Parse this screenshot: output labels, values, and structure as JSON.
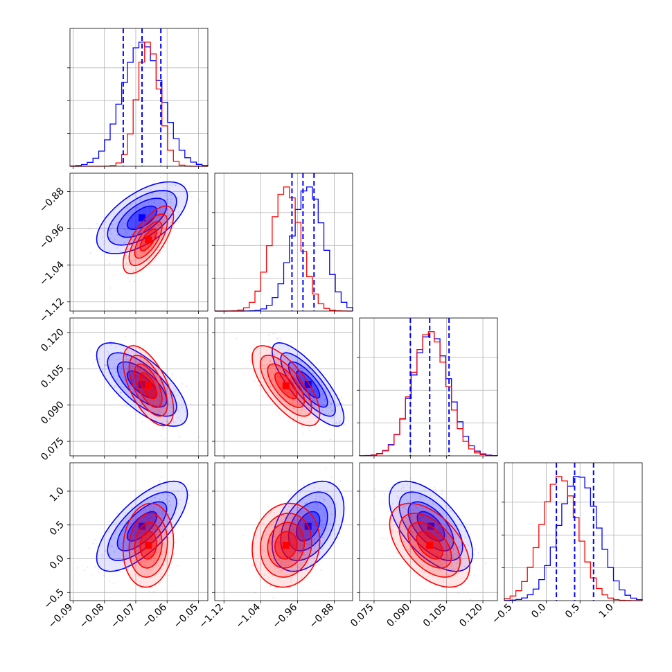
{
  "chart_data": {
    "type": "corner",
    "title": "",
    "grid": true,
    "parameters": [
      {
        "ticks": [
          -0.09,
          -0.08,
          -0.07,
          -0.06,
          -0.05
        ],
        "tick_labels": [
          "−0.09",
          "−0.08",
          "−0.07",
          "−0.06",
          "−0.05"
        ],
        "range": [
          -0.091,
          -0.047
        ]
      },
      {
        "ticks": [
          -1.12,
          -1.04,
          -0.96,
          -0.88
        ],
        "tick_labels": [
          "−1.12",
          "−1.04",
          "−0.96",
          "−0.88"
        ],
        "range": [
          -1.14,
          -0.84
        ]
      },
      {
        "ticks": [
          0.075,
          0.09,
          0.105,
          0.12
        ],
        "tick_labels": [
          "0.075",
          "0.090",
          "0.105",
          "0.120"
        ],
        "range": [
          0.069,
          0.126
        ]
      },
      {
        "ticks": [
          -0.5,
          0.0,
          0.5,
          1.0
        ],
        "tick_labels": [
          "−0.5",
          "0.0",
          "0.5",
          "1.0"
        ],
        "range": [
          -0.62,
          1.42
        ]
      }
    ],
    "series": [
      {
        "color": "#0000ff",
        "mean": [
          -0.068,
          -0.937,
          0.0985,
          0.48
        ],
        "std": [
          0.0063,
          0.034,
          0.0075,
          0.29
        ],
        "corr": [
          [
            1,
            0.6,
            -0.7,
            0.7
          ],
          [
            0.6,
            1,
            -0.8,
            0.4
          ],
          [
            -0.7,
            -0.8,
            1,
            -0.6
          ],
          [
            0.7,
            0.4,
            -0.6,
            1
          ]
        ]
      },
      {
        "color": "#ff0000",
        "mean": [
          -0.066,
          -0.985,
          0.098,
          0.2
        ],
        "std": [
          0.0035,
          0.032,
          0.0072,
          0.27
        ],
        "corr": [
          [
            1,
            0.7,
            -0.6,
            0.1
          ],
          [
            0.7,
            1,
            -0.7,
            0.1
          ],
          [
            -0.6,
            -0.7,
            1,
            -0.5
          ],
          [
            0.1,
            0.1,
            -0.5,
            1
          ]
        ]
      }
    ],
    "quantiles": {
      "color": "#0000ff",
      "values": [
        [
          -0.074,
          -0.068,
          -0.062
        ],
        [
          -0.972,
          -0.948,
          -0.924
        ],
        [
          0.09,
          0.098,
          0.106
        ],
        [
          0.15,
          0.42,
          0.7
        ]
      ]
    }
  }
}
